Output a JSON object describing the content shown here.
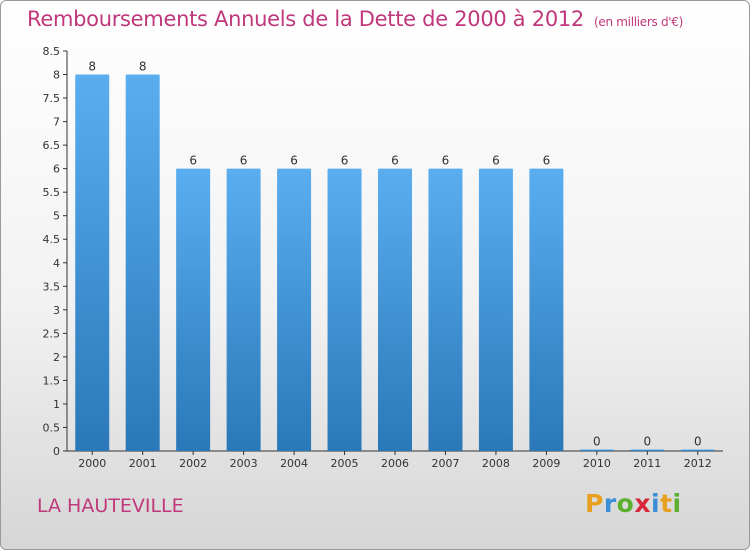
{
  "header": {
    "title": "Remboursements Annuels de la Dette de 2000 à 2012",
    "unit": "(en milliers d'€)"
  },
  "commune": "LA HAUTEVILLE",
  "logo": {
    "letters": [
      "P",
      "r",
      "o",
      "x",
      "i",
      "t",
      "i"
    ],
    "colors": [
      "#e8a020",
      "#3a8fd8",
      "#5cb030",
      "#d8283a",
      "#3a8fd8",
      "#e8a020",
      "#5cb030"
    ]
  },
  "chart_data": {
    "type": "bar",
    "categories": [
      "2000",
      "2001",
      "2002",
      "2003",
      "2004",
      "2005",
      "2006",
      "2007",
      "2008",
      "2009",
      "2010",
      "2011",
      "2012"
    ],
    "values": [
      8,
      8,
      6,
      6,
      6,
      6,
      6,
      6,
      6,
      6,
      0,
      0,
      0
    ],
    "data_labels": [
      "8",
      "8",
      "6",
      "6",
      "6",
      "6",
      "6",
      "6",
      "6",
      "6",
      "0",
      "0",
      "0"
    ],
    "y_ticks": [
      "0",
      "0.5",
      "1",
      "1.5",
      "2",
      "2.5",
      "3",
      "3.5",
      "4",
      "4.5",
      "5",
      "5.5",
      "6",
      "6.5",
      "7",
      "7.5",
      "8",
      "8.5"
    ],
    "ylim": [
      0,
      8.5
    ],
    "grid": false,
    "bar_color_top": "#5aaef0",
    "bar_color_bottom": "#2a78b8"
  }
}
